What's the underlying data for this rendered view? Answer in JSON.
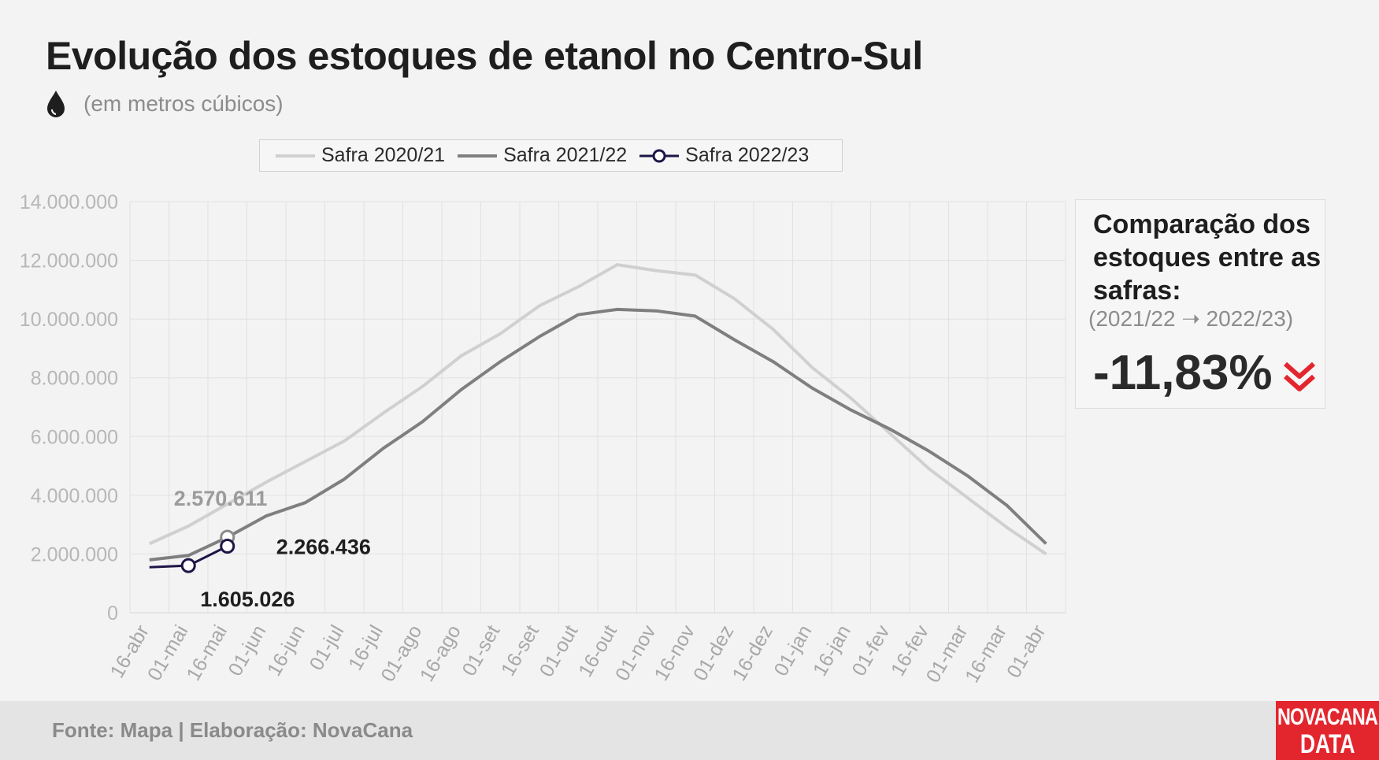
{
  "header": {
    "title": "Evolução dos estoques de etanol no Centro-Sul",
    "subtitle": "(em metros cúbicos)",
    "icon": "drop-icon"
  },
  "chart_data": {
    "type": "line",
    "title": "Evolução dos estoques de etanol no Centro-Sul",
    "subtitle": "(em metros cúbicos)",
    "xlabel": "",
    "ylabel": "",
    "categories": [
      "16-abr",
      "01-mai",
      "16-mai",
      "01-jun",
      "16-jun",
      "01-jul",
      "16-jul",
      "01-ago",
      "16-ago",
      "01-set",
      "16-set",
      "01-out",
      "16-out",
      "01-nov",
      "16-nov",
      "01-dez",
      "16-dez",
      "01-jan",
      "16-jan",
      "01-fev",
      "16-fev",
      "01-mar",
      "16-mar",
      "01-abr"
    ],
    "yticks": [
      "0",
      "2.000.000",
      "4.000.000",
      "6.000.000",
      "8.000.000",
      "10.000.000",
      "12.000.000",
      "14.000.000"
    ],
    "ylim": [
      0,
      14000000
    ],
    "grid": true,
    "legend_position": "top",
    "series": [
      {
        "name": "Safra 2020/21",
        "color": "#d0d0d0",
        "x": [
          0,
          1,
          2,
          3,
          4,
          5,
          6,
          7,
          8,
          9,
          10,
          11,
          12,
          13,
          14,
          15,
          16,
          17,
          18,
          19,
          20,
          21,
          22,
          23
        ],
        "values": [
          2350000,
          2950000,
          3700000,
          4450000,
          5150000,
          5850000,
          6800000,
          7700000,
          8750000,
          9500000,
          10450000,
          11100000,
          11850000,
          11650000,
          11500000,
          10700000,
          9650000,
          8350000,
          7300000,
          6100000,
          4900000,
          3900000,
          2900000,
          2000000
        ]
      },
      {
        "name": "Safra 2021/22",
        "color": "#7f7f7f",
        "x": [
          0,
          1,
          2,
          3,
          4,
          5,
          6,
          7,
          8,
          9,
          10,
          11,
          12,
          13,
          14,
          15,
          16,
          17,
          18,
          19,
          20,
          21,
          22,
          23
        ],
        "values": [
          1800000,
          1950000,
          2570611,
          3300000,
          3750000,
          4550000,
          5600000,
          6500000,
          7600000,
          8550000,
          9400000,
          10150000,
          10330000,
          10280000,
          10100000,
          9300000,
          8550000,
          7650000,
          6900000,
          6250000,
          5500000,
          4650000,
          3650000,
          2350000
        ]
      },
      {
        "name": "Safra 2022/23",
        "color": "#1b1646",
        "x": [
          0,
          1,
          2
        ],
        "values": [
          1550000,
          1605026,
          2266436
        ]
      }
    ],
    "annotations": [
      {
        "text": "2.570.611",
        "x": 2,
        "y": 2570611,
        "color": "#9b9b9b"
      },
      {
        "text": "2.266.436",
        "x": 2,
        "y": 2266436,
        "color": "#1e1e1e"
      },
      {
        "text": "1.605.026",
        "x": 1,
        "y": 1605026,
        "color": "#1e1e1e"
      }
    ]
  },
  "comparison": {
    "title": "Comparação dos estoques entre as safras:",
    "period": "(2021/22 ➝ 2022/23)",
    "value": "-11,83%",
    "arrow_icon": "double-chevron-down-icon",
    "arrow_color": "#e3262e"
  },
  "footer": {
    "source": "Fonte: Mapa | Elaboração: NovaCana",
    "logo_line1": "NOVACANA",
    "logo_line2": "DATA"
  }
}
